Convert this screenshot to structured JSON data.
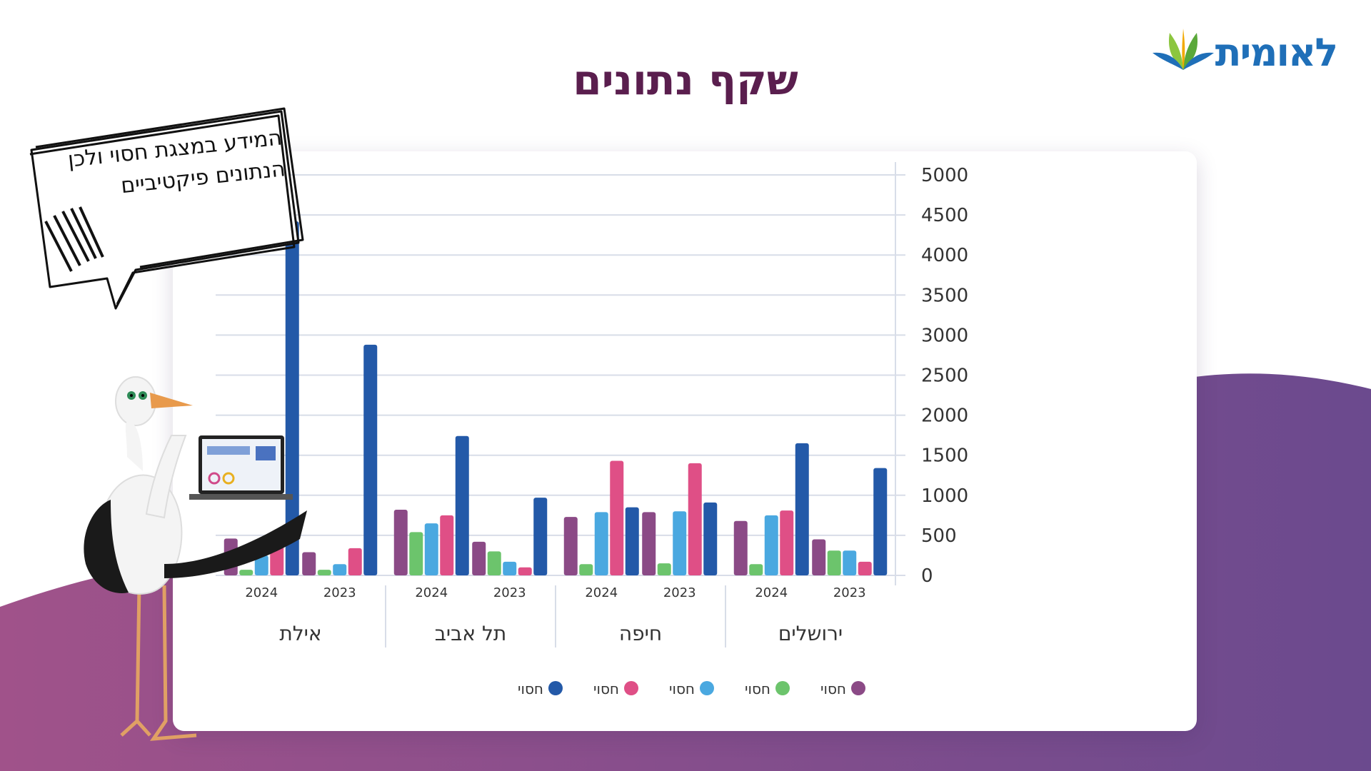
{
  "page": {
    "title": "שקף נתונים",
    "logo_text": "לאומית",
    "note": "המידע במצגת חסוי ולכן הנתונים פיקטיביים"
  },
  "colors": {
    "purple": "#8b4a86",
    "green": "#6cc46c",
    "light_blue": "#4aa8e0",
    "pink": "#df4f86",
    "dark_blue": "#2359a8",
    "title": "#5a1e4e",
    "wave_start": "#a0528a",
    "wave_end": "#6b4a8e"
  },
  "chart_data": {
    "type": "bar",
    "title": "",
    "ylim": [
      0,
      5000
    ],
    "yticks": [
      "0",
      "500",
      "1000",
      "1500",
      "2000",
      "2500",
      "3000",
      "3500",
      "4000",
      "4500",
      "5000"
    ],
    "grid": true,
    "legend_position": "bottom",
    "groups": [
      {
        "name": "אילת",
        "years": [
          {
            "year": "2024",
            "values": [
              460,
              70,
              250,
              420,
              4420
            ]
          },
          {
            "year": "2023",
            "values": [
              290,
              70,
              140,
              340,
              2880
            ]
          }
        ]
      },
      {
        "name": "תל אביב",
        "years": [
          {
            "year": "2024",
            "values": [
              820,
              540,
              650,
              750,
              1740
            ]
          },
          {
            "year": "2023",
            "values": [
              420,
              300,
              170,
              100,
              970
            ]
          }
        ]
      },
      {
        "name": "חיפה",
        "years": [
          {
            "year": "2024",
            "values": [
              730,
              140,
              790,
              1430,
              850
            ]
          },
          {
            "year": "2023",
            "values": [
              790,
              150,
              800,
              1400,
              910
            ]
          }
        ]
      },
      {
        "name": "ירושלים",
        "years": [
          {
            "year": "2024",
            "values": [
              680,
              140,
              750,
              810,
              1650
            ]
          },
          {
            "year": "2023",
            "values": [
              450,
              310,
              310,
              170,
              1340
            ]
          }
        ]
      }
    ],
    "series": [
      {
        "name": "חסוי",
        "color": "#8b4a86"
      },
      {
        "name": "חסוי",
        "color": "#6cc46c"
      },
      {
        "name": "חסוי",
        "color": "#4aa8e0"
      },
      {
        "name": "חסוי",
        "color": "#df4f86"
      },
      {
        "name": "חסוי",
        "color": "#2359a8"
      }
    ]
  }
}
